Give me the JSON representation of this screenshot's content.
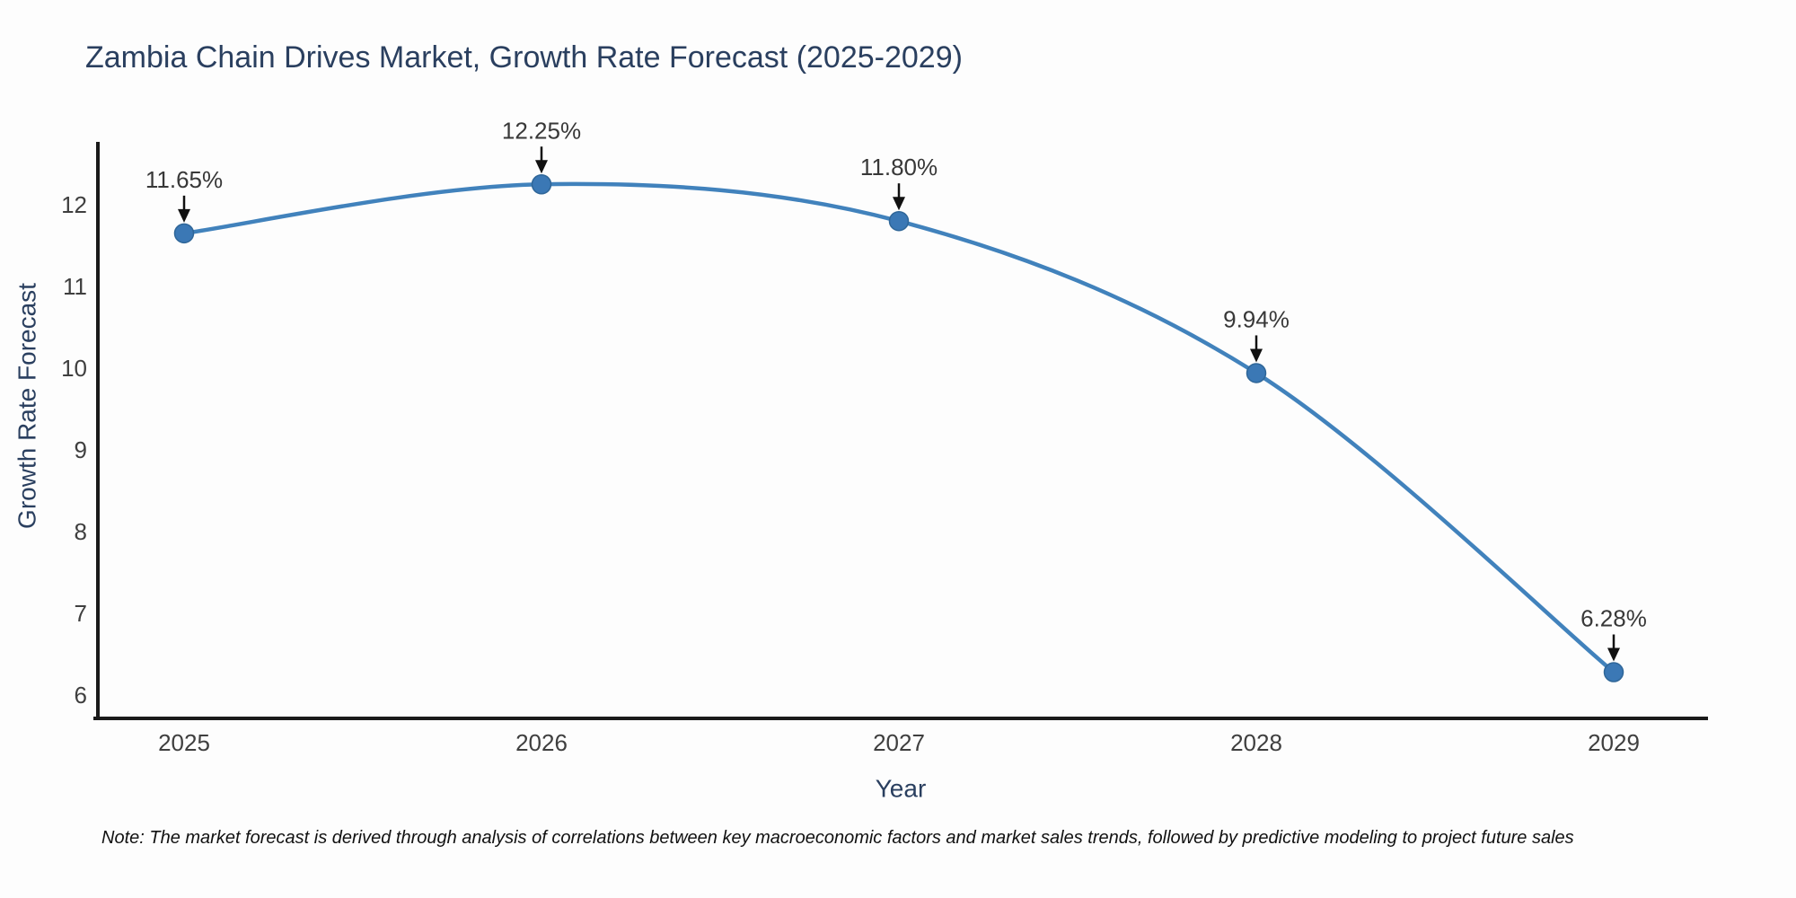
{
  "header": {
    "title": "Zambia Chain Drives Market, Growth Rate Forecast (2025-2029)"
  },
  "footer": {
    "note": "Note: The market forecast is derived through analysis of correlations between key macroeconomic factors and market sales trends, followed by predictive modeling to project future sales"
  },
  "chart_data": {
    "type": "line",
    "title": "Zambia Chain Drives Market, Growth Rate Forecast (2025-2029)",
    "x": [
      "2025",
      "2026",
      "2027",
      "2028",
      "2029"
    ],
    "series": [
      {
        "name": "Growth Rate Forecast",
        "values": [
          11.65,
          12.25,
          11.8,
          9.94,
          6.28
        ]
      }
    ],
    "point_labels": [
      "11.65%",
      "12.25%",
      "11.80%",
      "9.94%",
      "6.28%"
    ],
    "xlabel": "Year",
    "ylabel": "Growth Rate Forecast",
    "yticks": [
      6,
      7,
      8,
      9,
      10,
      11,
      12
    ],
    "ylim": [
      5.7,
      12.9
    ],
    "grid": false,
    "legend": "none",
    "line_shape": "spline",
    "annotation_style": "label-above-with-down-arrow",
    "colors": {
      "line": "#4182bc",
      "marker": "#3b78b5",
      "marker_stroke": "#2f6698",
      "axis": "#1a1a1a",
      "title": "#2a3f5f",
      "axis_title": "#2a3f5f",
      "tick": "#3f3f3f",
      "annotation": "#383838",
      "arrow": "#111111",
      "background": "#fdfdfd"
    }
  }
}
